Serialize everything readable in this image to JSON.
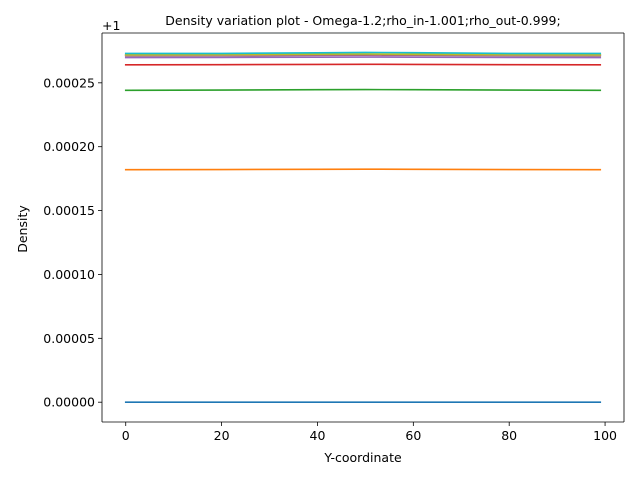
{
  "chart_data": {
    "type": "line",
    "title": "Density variation plot -  Omega-1.2;rho_in-1.001;rho_out-0.999;",
    "xlabel": "Y-coordinate",
    "ylabel": "Density",
    "offset_text": "+1",
    "xlim": [
      -4.95,
      103.95
    ],
    "ylim": [
      -1.55e-05,
      0.000289
    ],
    "x_ticks": [
      0,
      20,
      40,
      60,
      80,
      100
    ],
    "y_ticks": [
      0.0,
      5e-05,
      0.0001,
      0.00015,
      0.0002,
      0.00025
    ],
    "y_tick_labels": [
      "0.00000",
      "0.00005",
      "0.00010",
      "0.00015",
      "0.00020",
      "0.00025"
    ],
    "x": [
      0,
      20,
      40,
      50,
      60,
      80,
      99
    ],
    "grid": false,
    "series": [
      {
        "color": "#1f77b4",
        "values": [
          0.0,
          0.0,
          0.0,
          0.0,
          0.0,
          0.0,
          0.0
        ]
      },
      {
        "color": "#ff7f0e",
        "values": [
          0.000182,
          0.0001821,
          0.0001823,
          0.0001824,
          0.0001823,
          0.0001821,
          0.000182
        ]
      },
      {
        "color": "#2ca02c",
        "values": [
          0.0002441,
          0.0002443,
          0.0002446,
          0.0002447,
          0.0002446,
          0.0002443,
          0.0002441
        ]
      },
      {
        "color": "#d62728",
        "values": [
          0.0002641,
          0.0002642,
          0.0002644,
          0.0002645,
          0.0002644,
          0.0002642,
          0.0002641
        ]
      },
      {
        "color": "#9467bd",
        "values": [
          0.0002698,
          0.0002699,
          0.0002701,
          0.0002702,
          0.0002701,
          0.0002699,
          0.0002698
        ]
      },
      {
        "color": "#8c564b",
        "values": [
          0.0002712,
          0.0002713,
          0.0002715,
          0.0002716,
          0.0002715,
          0.0002713,
          0.0002712
        ]
      },
      {
        "color": "#e377c2",
        "values": [
          0.0002716,
          0.0002717,
          0.0002719,
          0.000272,
          0.0002719,
          0.0002717,
          0.0002716
        ]
      },
      {
        "color": "#7f7f7f",
        "values": [
          0.0002718,
          0.0002719,
          0.0002722,
          0.0002723,
          0.0002722,
          0.0002719,
          0.0002718
        ]
      },
      {
        "color": "#bcbd22",
        "values": [
          0.0002719,
          0.000272,
          0.0002724,
          0.0002726,
          0.0002723,
          0.000272,
          0.0002719
        ]
      },
      {
        "color": "#17becf",
        "values": [
          0.000273,
          0.000273,
          0.0002735,
          0.0002738,
          0.0002736,
          0.000273,
          0.000273
        ]
      }
    ]
  }
}
